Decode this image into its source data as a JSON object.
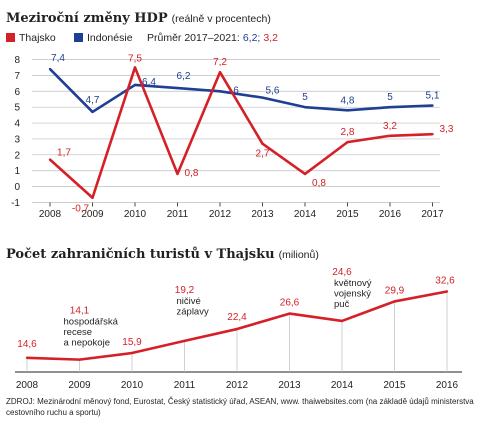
{
  "header": {
    "title1_bold": "Meziroční změny HDP",
    "title1_sub": "(reálně v procentech)",
    "title2_bold": "Počet zahraničních turistů v Thajsku",
    "title2_sub": "(milionů)"
  },
  "legend": {
    "average_label": "Průměr 2017–2021:",
    "average_a": "6,2;",
    "average_b": "3,2"
  },
  "source": {
    "line1": "ZDROJ: Mezinárodní měnový fond, Eurostat, Český statistický úřad, ASEAN, www. thaiwebsites.com (na základě údajů ministerstva",
    "line2": "cestovního ruchu a sportu)"
  },
  "chart_data": [
    {
      "type": "line",
      "title": "Meziroční změny HDP",
      "subtitle": "(reálně v procentech)",
      "x": [
        "2008",
        "2009",
        "2010",
        "2011",
        "2012",
        "2013",
        "2014",
        "2015",
        "2016",
        "2017"
      ],
      "ylim": [
        -1,
        8
      ],
      "yticks": [
        -1,
        0,
        1,
        2,
        3,
        4,
        5,
        6,
        7,
        8
      ],
      "grid": true,
      "legend_position": "top-left",
      "series": [
        {
          "name": "Thajsko",
          "color": "#d52027",
          "values": [
            1.7,
            -0.7,
            7.5,
            0.8,
            7.2,
            2.7,
            0.8,
            2.8,
            3.2,
            3.3
          ],
          "labels": [
            "1,7",
            "-0,7",
            "7,5",
            "0,8",
            "7,2",
            "2,7",
            "0,8",
            "2,8",
            "3,2",
            "3,3"
          ]
        },
        {
          "name": "Indonésie",
          "color": "#1f3f95",
          "values": [
            7.4,
            4.7,
            6.4,
            6.2,
            6.0,
            5.6,
            5.0,
            4.8,
            5.0,
            5.1
          ],
          "labels": [
            "7,4",
            "4,7",
            "6,4",
            "6,2",
            "6",
            "5,6",
            "5",
            "4,8",
            "5",
            "5,1"
          ]
        }
      ]
    },
    {
      "type": "line",
      "title": "Počet zahraničních turistů v Thajsku",
      "subtitle": "(milionů)",
      "x": [
        "2008",
        "2009",
        "2010",
        "2011",
        "2012",
        "2013",
        "2014",
        "2015",
        "2016"
      ],
      "ylim": [
        14,
        33
      ],
      "grid": false,
      "series": [
        {
          "color": "#d52027",
          "values": [
            14.6,
            14.1,
            15.9,
            19.2,
            22.4,
            26.6,
            24.6,
            29.9,
            32.6
          ],
          "labels": [
            "14,6",
            "14,1",
            "15,9",
            "19,2",
            "22,4",
            "26,6",
            "24,6",
            "29,9",
            "32,6"
          ]
        }
      ],
      "annotations": [
        {
          "x": "2009",
          "text": [
            "hospodářská",
            "recese",
            "a nepokoje"
          ]
        },
        {
          "x": "2011",
          "text": [
            "ničivé",
            "záplavy"
          ]
        },
        {
          "x": "2014",
          "text": [
            "květnový",
            "vojenský",
            "puč"
          ]
        }
      ]
    }
  ]
}
